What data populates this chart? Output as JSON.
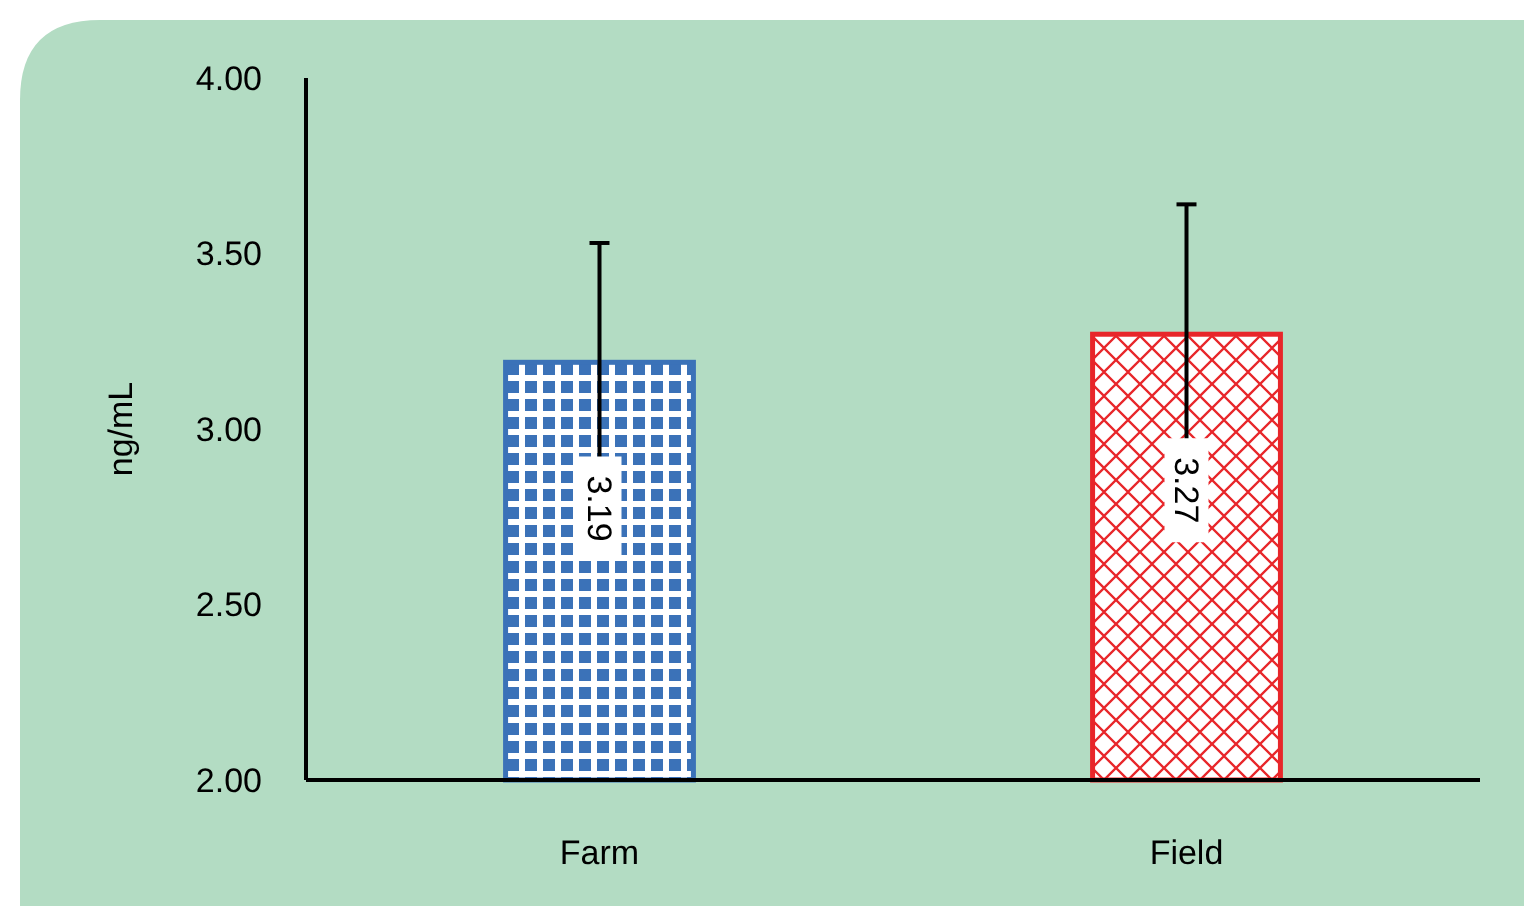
{
  "chart_data": {
    "type": "bar",
    "ylabel": "ng/mL",
    "categories": [
      "Farm",
      "Field"
    ],
    "values": [
      3.19,
      3.27
    ],
    "colors": [
      "#3b72b8",
      "#e8262a"
    ],
    "errors": [
      0.34,
      0.37
    ],
    "data_labels": true,
    "ylim": [
      2,
      4
    ],
    "yticks": [
      {
        "value": 2,
        "label": "2.00"
      },
      {
        "value": 2.5,
        "label": "2.50"
      },
      {
        "value": 3,
        "label": "3.00"
      },
      {
        "value": 3.5,
        "label": "3.50"
      },
      {
        "value": 4,
        "label": "4.00"
      }
    ],
    "grid": false
  }
}
